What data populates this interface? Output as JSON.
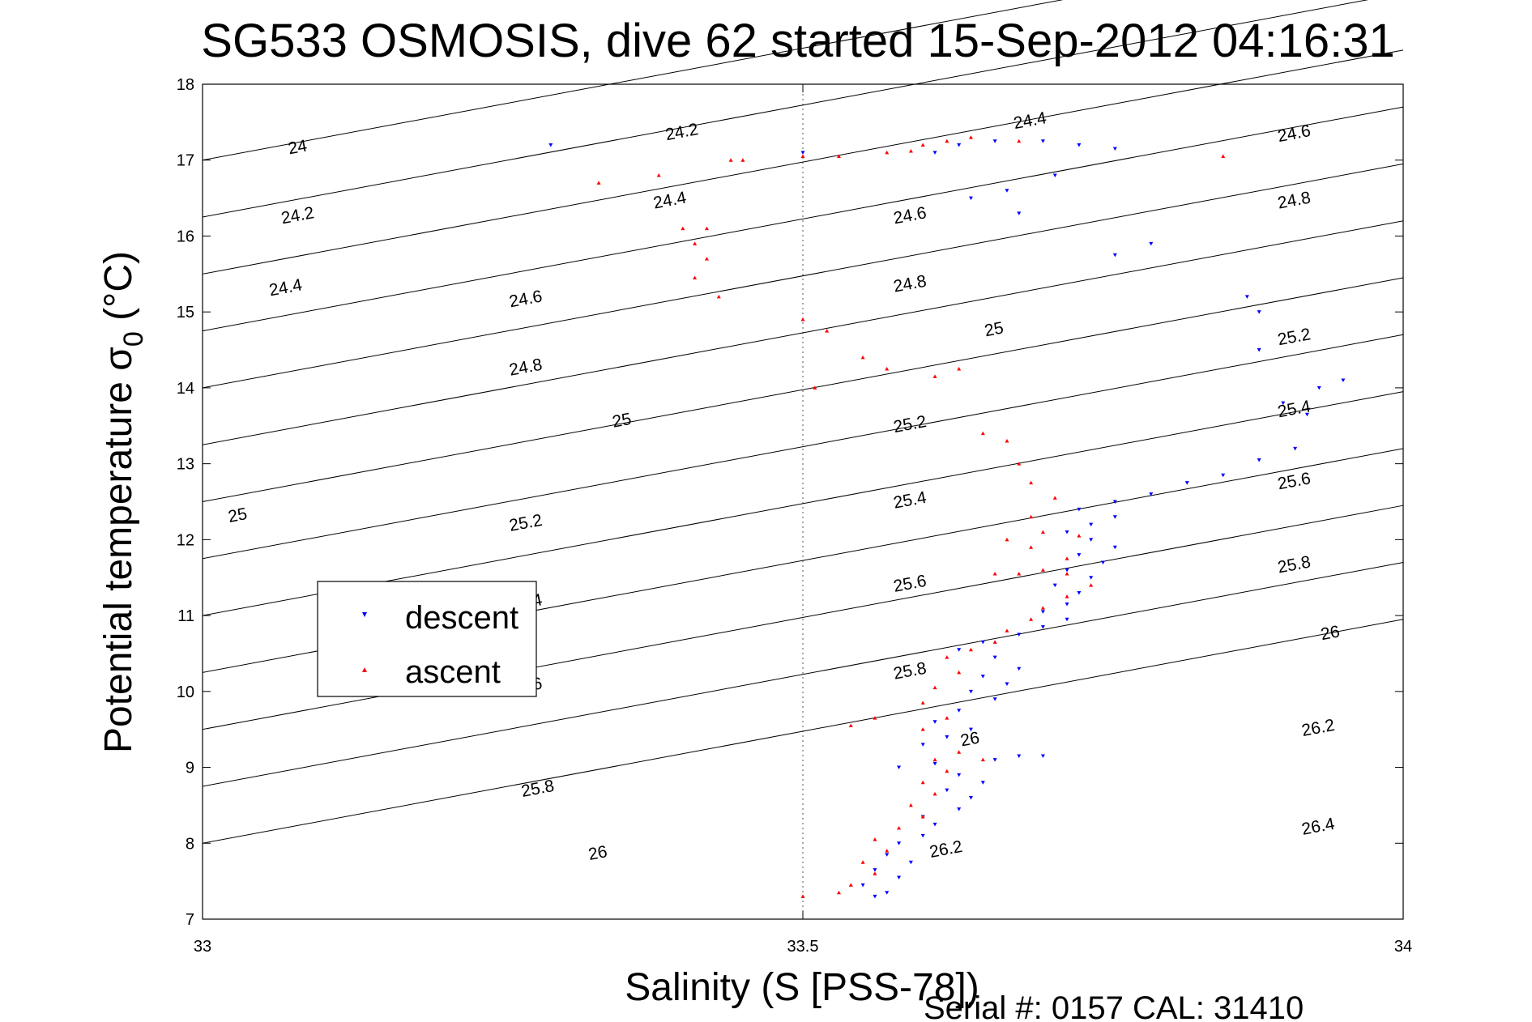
{
  "chart_data": {
    "type": "scatter",
    "title": "SG533 OSMOSIS, dive 62 started 15-Sep-2012 04:16:31",
    "xlabel": "Salinity (S [PSS-78])",
    "ylabel_main": "Potential temperature σ",
    "ylabel_sub": "0",
    "ylabel_unit": " (°C)",
    "xlim": [
      33,
      34
    ],
    "ylim": [
      7,
      18
    ],
    "xticks": [
      {
        "value": 33,
        "label": "33"
      },
      {
        "value": 33.5,
        "label": "33.5"
      },
      {
        "value": 34,
        "label": "34"
      }
    ],
    "yticks": [
      {
        "value": 7,
        "label": "7"
      },
      {
        "value": 8,
        "label": "8"
      },
      {
        "value": 9,
        "label": "9"
      },
      {
        "value": 10,
        "label": "10"
      },
      {
        "value": 11,
        "label": "11"
      },
      {
        "value": 12,
        "label": "12"
      },
      {
        "value": 13,
        "label": "13"
      },
      {
        "value": 14,
        "label": "14"
      },
      {
        "value": 15,
        "label": "15"
      },
      {
        "value": 16,
        "label": "16"
      },
      {
        "value": 17,
        "label": "17"
      },
      {
        "value": 18,
        "label": "18"
      }
    ],
    "grid": "dotted gridline at x = 33.5",
    "density_contours": {
      "levels": [
        24.0,
        24.2,
        24.4,
        24.6,
        24.8,
        25.0,
        25.2,
        25.4,
        25.6,
        25.8,
        26.0,
        26.2,
        26.4
      ],
      "labels": [
        {
          "text": "24",
          "s": 33.08,
          "t": 17.1
        },
        {
          "text": "24.2",
          "s": 33.4,
          "t": 17.3
        },
        {
          "text": "24.4",
          "s": 33.69,
          "t": 17.45
        },
        {
          "text": "24.6",
          "s": 33.91,
          "t": 17.28
        },
        {
          "text": "24.2",
          "s": 33.08,
          "t": 16.2
        },
        {
          "text": "24.4",
          "s": 33.39,
          "t": 16.4
        },
        {
          "text": "24.6",
          "s": 33.59,
          "t": 16.2
        },
        {
          "text": "24.8",
          "s": 33.91,
          "t": 16.4
        },
        {
          "text": "24.4",
          "s": 33.07,
          "t": 15.25
        },
        {
          "text": "24.6",
          "s": 33.27,
          "t": 15.1
        },
        {
          "text": "24.8",
          "s": 33.59,
          "t": 15.3
        },
        {
          "text": "25",
          "s": 33.66,
          "t": 14.7
        },
        {
          "text": "25.2",
          "s": 33.91,
          "t": 14.6
        },
        {
          "text": "24.8",
          "s": 33.27,
          "t": 14.2
        },
        {
          "text": "25",
          "s": 33.35,
          "t": 13.5
        },
        {
          "text": "25.2",
          "s": 33.59,
          "t": 13.45
        },
        {
          "text": "25.4",
          "s": 33.91,
          "t": 13.65
        },
        {
          "text": "25",
          "s": 33.03,
          "t": 12.25
        },
        {
          "text": "25.2",
          "s": 33.27,
          "t": 12.15
        },
        {
          "text": "25.4",
          "s": 33.59,
          "t": 12.45
        },
        {
          "text": "25.6",
          "s": 33.91,
          "t": 12.7
        },
        {
          "text": "25.4",
          "s": 33.27,
          "t": 11.1
        },
        {
          "text": "25.6",
          "s": 33.59,
          "t": 11.35
        },
        {
          "text": "25.8",
          "s": 33.91,
          "t": 11.6
        },
        {
          "text": "26",
          "s": 33.94,
          "t": 10.7
        },
        {
          "text": "25.6",
          "s": 33.27,
          "t": 10.0
        },
        {
          "text": "25.8",
          "s": 33.59,
          "t": 10.2
        },
        {
          "text": "26",
          "s": 33.64,
          "t": 9.3
        },
        {
          "text": "26.2",
          "s": 33.93,
          "t": 9.45
        },
        {
          "text": "25.8",
          "s": 33.28,
          "t": 8.65
        },
        {
          "text": "26.2",
          "s": 33.62,
          "t": 7.85
        },
        {
          "text": "26.4",
          "s": 33.93,
          "t": 8.15
        },
        {
          "text": "26",
          "s": 33.33,
          "t": 7.8
        }
      ]
    },
    "series": [
      {
        "name": "descent",
        "color": "#0000ff",
        "marker": "triangle-down",
        "points": [
          [
            33.56,
            7.3
          ],
          [
            33.57,
            7.35
          ],
          [
            33.55,
            7.45
          ],
          [
            33.58,
            7.55
          ],
          [
            33.56,
            7.65
          ],
          [
            33.59,
            7.75
          ],
          [
            33.57,
            7.85
          ],
          [
            33.58,
            8.0
          ],
          [
            33.6,
            8.1
          ],
          [
            33.61,
            8.25
          ],
          [
            33.6,
            8.35
          ],
          [
            33.63,
            8.45
          ],
          [
            33.64,
            8.6
          ],
          [
            33.62,
            8.7
          ],
          [
            33.65,
            8.8
          ],
          [
            33.63,
            8.9
          ],
          [
            33.61,
            9.05
          ],
          [
            33.66,
            9.1
          ],
          [
            33.68,
            9.15
          ],
          [
            33.7,
            9.15
          ],
          [
            33.58,
            9.0
          ],
          [
            33.6,
            9.3
          ],
          [
            33.62,
            9.4
          ],
          [
            33.64,
            9.5
          ],
          [
            33.61,
            9.6
          ],
          [
            33.63,
            9.75
          ],
          [
            33.66,
            9.9
          ],
          [
            33.64,
            10.0
          ],
          [
            33.67,
            10.1
          ],
          [
            33.65,
            10.2
          ],
          [
            33.68,
            10.3
          ],
          [
            33.66,
            10.45
          ],
          [
            33.63,
            10.55
          ],
          [
            33.65,
            10.65
          ],
          [
            33.68,
            10.75
          ],
          [
            33.7,
            10.85
          ],
          [
            33.72,
            10.95
          ],
          [
            33.7,
            11.05
          ],
          [
            33.72,
            11.15
          ],
          [
            33.73,
            11.3
          ],
          [
            33.71,
            11.4
          ],
          [
            33.74,
            11.5
          ],
          [
            33.72,
            11.6
          ],
          [
            33.75,
            11.7
          ],
          [
            33.73,
            11.8
          ],
          [
            33.76,
            11.9
          ],
          [
            33.74,
            12.0
          ],
          [
            33.72,
            12.1
          ],
          [
            33.74,
            12.2
          ],
          [
            33.76,
            12.3
          ],
          [
            33.73,
            12.4
          ],
          [
            33.76,
            12.5
          ],
          [
            33.79,
            12.6
          ],
          [
            33.82,
            12.75
          ],
          [
            33.85,
            12.85
          ],
          [
            33.88,
            13.05
          ],
          [
            33.91,
            13.2
          ],
          [
            33.92,
            13.65
          ],
          [
            33.9,
            13.8
          ],
          [
            33.95,
            14.1
          ],
          [
            33.93,
            14.0
          ],
          [
            33.88,
            14.5
          ],
          [
            33.88,
            15.0
          ],
          [
            33.87,
            15.2
          ],
          [
            33.79,
            15.9
          ],
          [
            33.76,
            15.75
          ],
          [
            33.68,
            16.3
          ],
          [
            33.67,
            16.6
          ],
          [
            33.71,
            16.8
          ],
          [
            33.64,
            16.5
          ],
          [
            33.76,
            17.15
          ],
          [
            33.73,
            17.2
          ],
          [
            33.7,
            17.25
          ],
          [
            33.66,
            17.25
          ],
          [
            33.63,
            17.2
          ],
          [
            33.61,
            17.1
          ],
          [
            33.29,
            17.2
          ],
          [
            33.5,
            17.1
          ]
        ]
      },
      {
        "name": "ascent",
        "color": "#ff0000",
        "marker": "triangle-up",
        "points": [
          [
            33.5,
            7.3
          ],
          [
            33.53,
            7.35
          ],
          [
            33.54,
            7.45
          ],
          [
            33.56,
            7.6
          ],
          [
            33.55,
            7.75
          ],
          [
            33.57,
            7.9
          ],
          [
            33.56,
            8.05
          ],
          [
            33.58,
            8.2
          ],
          [
            33.6,
            8.35
          ],
          [
            33.59,
            8.5
          ],
          [
            33.61,
            8.65
          ],
          [
            33.6,
            8.8
          ],
          [
            33.62,
            8.95
          ],
          [
            33.61,
            9.1
          ],
          [
            33.63,
            9.2
          ],
          [
            33.65,
            9.1
          ],
          [
            33.54,
            9.55
          ],
          [
            33.56,
            9.65
          ],
          [
            33.6,
            9.5
          ],
          [
            33.62,
            9.65
          ],
          [
            33.6,
            9.85
          ],
          [
            33.61,
            10.05
          ],
          [
            33.63,
            10.25
          ],
          [
            33.62,
            10.45
          ],
          [
            33.64,
            10.55
          ],
          [
            33.66,
            10.65
          ],
          [
            33.67,
            10.8
          ],
          [
            33.69,
            10.95
          ],
          [
            33.7,
            11.1
          ],
          [
            33.72,
            11.25
          ],
          [
            33.74,
            11.4
          ],
          [
            33.72,
            11.55
          ],
          [
            33.7,
            11.6
          ],
          [
            33.68,
            11.55
          ],
          [
            33.66,
            11.55
          ],
          [
            33.72,
            11.75
          ],
          [
            33.69,
            11.9
          ],
          [
            33.67,
            12.0
          ],
          [
            33.7,
            12.1
          ],
          [
            33.73,
            12.05
          ],
          [
            33.69,
            12.3
          ],
          [
            33.71,
            12.55
          ],
          [
            33.69,
            12.75
          ],
          [
            33.68,
            13.0
          ],
          [
            33.67,
            13.3
          ],
          [
            33.65,
            13.4
          ],
          [
            33.61,
            14.15
          ],
          [
            33.63,
            14.25
          ],
          [
            33.55,
            14.4
          ],
          [
            33.57,
            14.25
          ],
          [
            33.52,
            14.75
          ],
          [
            33.51,
            14.0
          ],
          [
            33.5,
            14.9
          ],
          [
            33.43,
            15.2
          ],
          [
            33.41,
            15.45
          ],
          [
            33.42,
            15.7
          ],
          [
            33.4,
            16.1
          ],
          [
            33.42,
            16.1
          ],
          [
            33.41,
            15.9
          ],
          [
            33.38,
            16.8
          ],
          [
            33.33,
            16.7
          ],
          [
            33.45,
            17.0
          ],
          [
            33.5,
            17.05
          ],
          [
            33.53,
            17.05
          ],
          [
            33.57,
            17.1
          ],
          [
            33.59,
            17.12
          ],
          [
            33.6,
            17.2
          ],
          [
            33.62,
            17.25
          ],
          [
            33.64,
            17.3
          ],
          [
            33.68,
            17.25
          ],
          [
            33.85,
            17.05
          ],
          [
            33.44,
            17.0
          ]
        ]
      }
    ],
    "legend": {
      "position": "left-middle",
      "entries": [
        {
          "label": "descent",
          "color": "#0000ff",
          "marker": "triangle-down"
        },
        {
          "label": "ascent",
          "color": "#ff0000",
          "marker": "triangle-up"
        }
      ]
    }
  },
  "footer": {
    "serial_text": "Serial #: 0157  CAL: 31410"
  }
}
